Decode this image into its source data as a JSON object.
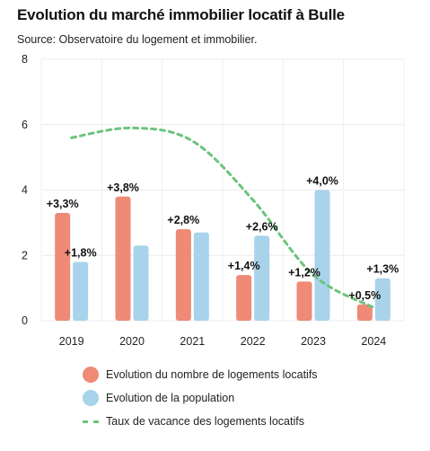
{
  "chart_data": {
    "type": "bar",
    "title": "Evolution du marché immobilier locatif à Bulle",
    "subtitle": "Source: Observatoire du logement et immobilier.",
    "categories": [
      "2019",
      "2020",
      "2021",
      "2022",
      "2023",
      "2024"
    ],
    "ylim": [
      0,
      8
    ],
    "yticks": [
      0,
      2,
      4,
      6,
      8
    ],
    "grid": true,
    "legend_position": "bottom",
    "series": [
      {
        "name": "Evolution du nombre de logements locatifs",
        "type": "bar",
        "color": "#ee8a76",
        "values": [
          3.3,
          3.8,
          2.8,
          1.4,
          1.2,
          0.5
        ],
        "labels": [
          "+3,3%",
          "+3,8%",
          "+2,8%",
          "+1,4%",
          "+1,2%",
          "+0,5%"
        ]
      },
      {
        "name": "Evolution de la population",
        "type": "bar",
        "color": "#a8d3ea",
        "values": [
          1.8,
          2.3,
          2.7,
          2.6,
          4.0,
          1.3
        ],
        "labels": [
          "+1,8%",
          "",
          "",
          "+2,6%",
          "+4,0%",
          "+1,3%"
        ]
      },
      {
        "name": "Taux de vacance des logements locatifs",
        "type": "line",
        "style": "dashed",
        "color": "#6cc47c",
        "values": [
          5.6,
          5.9,
          5.5,
          3.7,
          1.4,
          0.4
        ]
      }
    ]
  }
}
